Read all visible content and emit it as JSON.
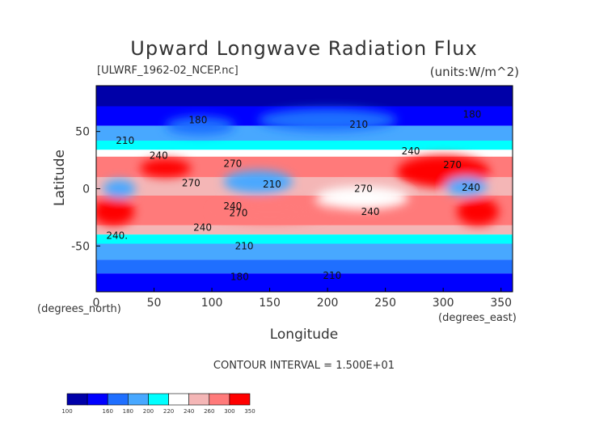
{
  "header": {
    "title": "Upward Longwave Radiation Flux",
    "file_label": "[ULWRF_1962-02_NCEP.nc]",
    "units_label": "(units:W/m^2)"
  },
  "chart_data": {
    "type": "heatmap",
    "title": "Upward Longwave Radiation Flux",
    "xlabel": "Longitude",
    "ylabel": "Latitude",
    "x_unit_label": "(degrees_north)",
    "x_unit_label_2": "(degrees_east)",
    "xlim": [
      0,
      360
    ],
    "ylim": [
      -90,
      90
    ],
    "xticks": [
      0,
      50,
      100,
      150,
      200,
      250,
      300,
      350
    ],
    "yticks": [
      50,
      0,
      -50
    ],
    "contour_interval_text": "CONTOUR INTERVAL = 1.500E+01",
    "colorbar": {
      "levels": [
        100,
        160,
        180,
        200,
        220,
        240,
        260,
        300,
        350
      ],
      "colors": [
        "#0000a8",
        "#0000ff",
        "#1f6fff",
        "#48a8ff",
        "#00ffff",
        "#ffffff",
        "#f4b6b6",
        "#ff7a7a",
        "#ff0000"
      ]
    },
    "contour_labels": [
      {
        "text": "180",
        "lon": 88,
        "lat": 60
      },
      {
        "text": "210",
        "lon": 25,
        "lat": 42
      },
      {
        "text": "240",
        "lon": 54,
        "lat": 29
      },
      {
        "text": "270",
        "lon": 118,
        "lat": 22
      },
      {
        "text": "270",
        "lon": 82,
        "lat": 5
      },
      {
        "text": "210",
        "lon": 152,
        "lat": 4
      },
      {
        "text": "240",
        "lon": 118,
        "lat": -15
      },
      {
        "text": "270",
        "lon": 123,
        "lat": -21
      },
      {
        "text": "240",
        "lon": 92,
        "lat": -34
      },
      {
        "text": "240.",
        "lon": 18,
        "lat": -41
      },
      {
        "text": "210",
        "lon": 128,
        "lat": -50
      },
      {
        "text": "180",
        "lon": 124,
        "lat": -77
      },
      {
        "text": "210",
        "lon": 204,
        "lat": -76
      },
      {
        "text": "270",
        "lon": 231,
        "lat": 0
      },
      {
        "text": "240",
        "lon": 237,
        "lat": -20
      },
      {
        "text": "240",
        "lon": 272,
        "lat": 33
      },
      {
        "text": "270",
        "lon": 308,
        "lat": 21
      },
      {
        "text": "240",
        "lon": 324,
        "lat": 1
      },
      {
        "text": "210",
        "lon": 227,
        "lat": 56
      },
      {
        "text": "180",
        "lon": 325,
        "lat": 65
      }
    ]
  }
}
